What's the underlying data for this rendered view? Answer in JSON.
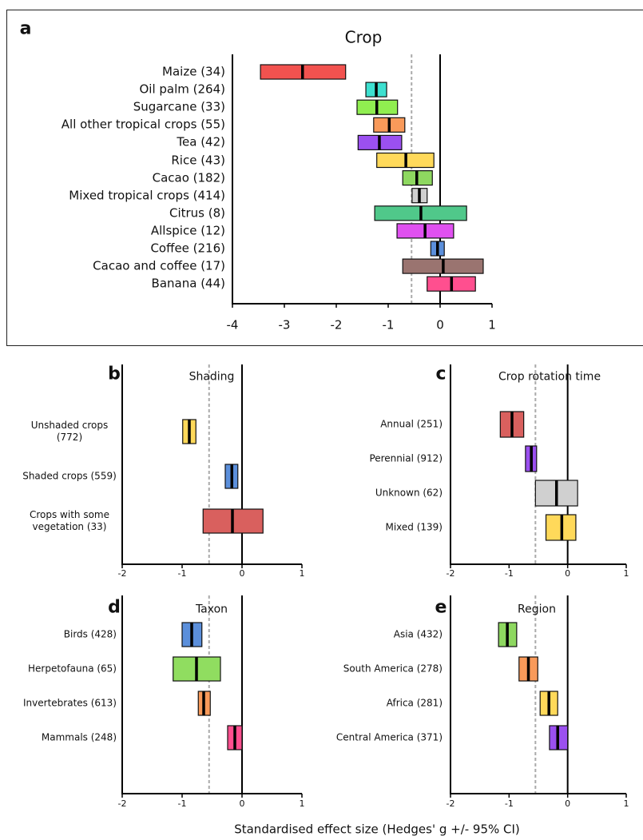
{
  "chart_data": [
    {
      "type": "range_bar",
      "panel_label": "a",
      "title": "Crop",
      "categories": [
        "Maize (34)",
        "Oil palm (264)",
        "Sugarcane (33)",
        "All other tropical crops (55)",
        "Tea (42)",
        "Rice (43)",
        "Cacao (182)",
        "Mixed tropical crops (414)",
        "Citrus (8)",
        "Allspice (12)",
        "Coffee (216)",
        "Cacao and coffee (17)",
        "Banana (44)"
      ],
      "mean": [
        -2.65,
        -1.23,
        -1.22,
        -0.98,
        -1.17,
        -0.66,
        -0.45,
        -0.4,
        -0.37,
        -0.29,
        -0.05,
        0.06,
        0.22
      ],
      "ci_low": [
        -3.46,
        -1.43,
        -1.6,
        -1.28,
        -1.58,
        -1.22,
        -0.72,
        -0.54,
        -1.26,
        -0.83,
        -0.18,
        -0.72,
        -0.25
      ],
      "ci_high": [
        -1.82,
        -1.03,
        -0.82,
        -0.68,
        -0.74,
        -0.12,
        -0.15,
        -0.25,
        0.51,
        0.26,
        0.08,
        0.83,
        0.68
      ],
      "colors": [
        "#f2524f",
        "#3de0d0",
        "#90ee50",
        "#f99a5a",
        "#9b50f0",
        "#ffd95a",
        "#8ed860",
        "#d0d0d0",
        "#50c88a",
        "#e050f0",
        "#5b8fdb",
        "#9a7470",
        "#ff4f8f"
      ],
      "reference_line": -0.55,
      "xlim": [
        -4,
        1
      ],
      "xticks": [
        -4,
        -3,
        -2,
        -1,
        0,
        1
      ]
    },
    {
      "type": "range_bar",
      "panel_label": "b",
      "title": "Shading",
      "categories": [
        "Unshaded crops (772)",
        "Shaded crops (559)",
        "Crops with some vegetation (33)"
      ],
      "mean": [
        -0.88,
        -0.17,
        -0.16
      ],
      "ci_low": [
        -0.99,
        -0.28,
        -0.65
      ],
      "ci_high": [
        -0.77,
        -0.07,
        0.35
      ],
      "colors": [
        "#ffd95a",
        "#5b8fdb",
        "#d9605e"
      ],
      "reference_line": -0.55,
      "xlim": [
        -2,
        1
      ],
      "xticks": [
        -2,
        -1,
        0,
        1
      ]
    },
    {
      "type": "range_bar",
      "panel_label": "c",
      "title": "Crop rotation time",
      "categories": [
        "Annual (251)",
        "Perennial (912)",
        "Unknown (62)",
        "Mixed (139)"
      ],
      "mean": [
        -0.95,
        -0.62,
        -0.19,
        -0.1
      ],
      "ci_low": [
        -1.15,
        -0.72,
        -0.55,
        -0.37
      ],
      "ci_high": [
        -0.75,
        -0.53,
        0.17,
        0.14
      ],
      "colors": [
        "#d9605e",
        "#9b50f0",
        "#d0d0d0",
        "#ffd95a"
      ],
      "reference_line": -0.55,
      "xlim": [
        -2,
        1
      ],
      "xticks": [
        -2,
        -1,
        0,
        1
      ]
    },
    {
      "type": "range_bar",
      "panel_label": "d",
      "title": "Taxon",
      "categories": [
        "Birds (428)",
        "Herpetofauna (65)",
        "Invertebrates (613)",
        "Mammals (248)"
      ],
      "mean": [
        -0.84,
        -0.76,
        -0.64,
        -0.12
      ],
      "ci_low": [
        -1.0,
        -1.15,
        -0.73,
        -0.24
      ],
      "ci_high": [
        -0.67,
        -0.36,
        -0.53,
        0.0
      ],
      "colors": [
        "#5b8fdb",
        "#90dd60",
        "#f99a5a",
        "#ff4f8f"
      ],
      "reference_line": -0.55,
      "xlim": [
        -2,
        1
      ],
      "xticks": [
        -2,
        -1,
        0,
        1
      ]
    },
    {
      "type": "range_bar",
      "panel_label": "e",
      "title": "Region",
      "categories": [
        "Asia (432)",
        "South America (278)",
        "Africa (281)",
        "Central America (371)"
      ],
      "mean": [
        -1.03,
        -0.67,
        -0.32,
        -0.17
      ],
      "ci_low": [
        -1.18,
        -0.83,
        -0.47,
        -0.31
      ],
      "ci_high": [
        -0.87,
        -0.51,
        -0.17,
        0.0
      ],
      "colors": [
        "#8ed860",
        "#f99a5a",
        "#ffd95a",
        "#9b50f0"
      ],
      "reference_line": -0.55,
      "xlim": [
        -2,
        1
      ],
      "xticks": [
        -2,
        -1,
        0,
        1
      ]
    }
  ],
  "x_label": "Standardised effect size (Hedges' g +/- 95% CI)"
}
